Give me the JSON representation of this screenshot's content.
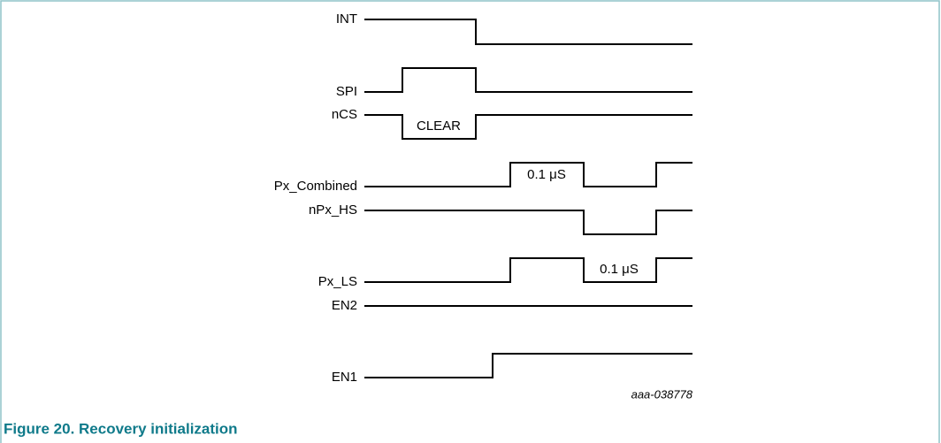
{
  "signals": [
    {
      "label": "INT"
    },
    {
      "label": "SPI"
    },
    {
      "label": "nCS"
    },
    {
      "label": "Px_Combined"
    },
    {
      "label": "nPx_HS"
    },
    {
      "label": "Px_LS"
    },
    {
      "label": "EN2"
    },
    {
      "label": "EN1"
    }
  ],
  "annotations": [
    "CLEAR",
    "0.1 μS",
    "0.1 μS"
  ],
  "figure_id": "aaa-038778",
  "caption": "Figure 20. Recovery initialization"
}
